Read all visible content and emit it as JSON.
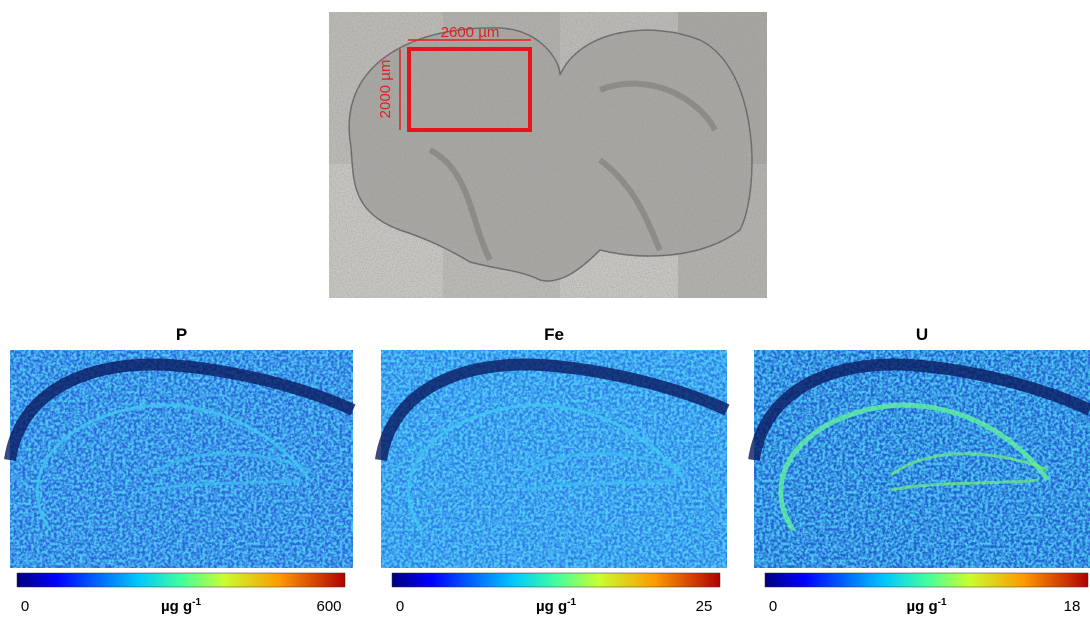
{
  "micrograph": {
    "width_label": "2600 µm",
    "height_label": "2000 µm"
  },
  "panels": [
    {
      "title": "P",
      "colorbar": {
        "min": "0",
        "unit": "µg g",
        "unit_exponent": "-1",
        "max": "600"
      }
    },
    {
      "title": "Fe",
      "colorbar": {
        "min": "0",
        "unit": "µg g",
        "unit_exponent": "-1",
        "max": "25"
      }
    },
    {
      "title": "U",
      "colorbar": {
        "min": "0",
        "unit": "µg g",
        "unit_exponent": "-1",
        "max": "18"
      }
    }
  ]
}
